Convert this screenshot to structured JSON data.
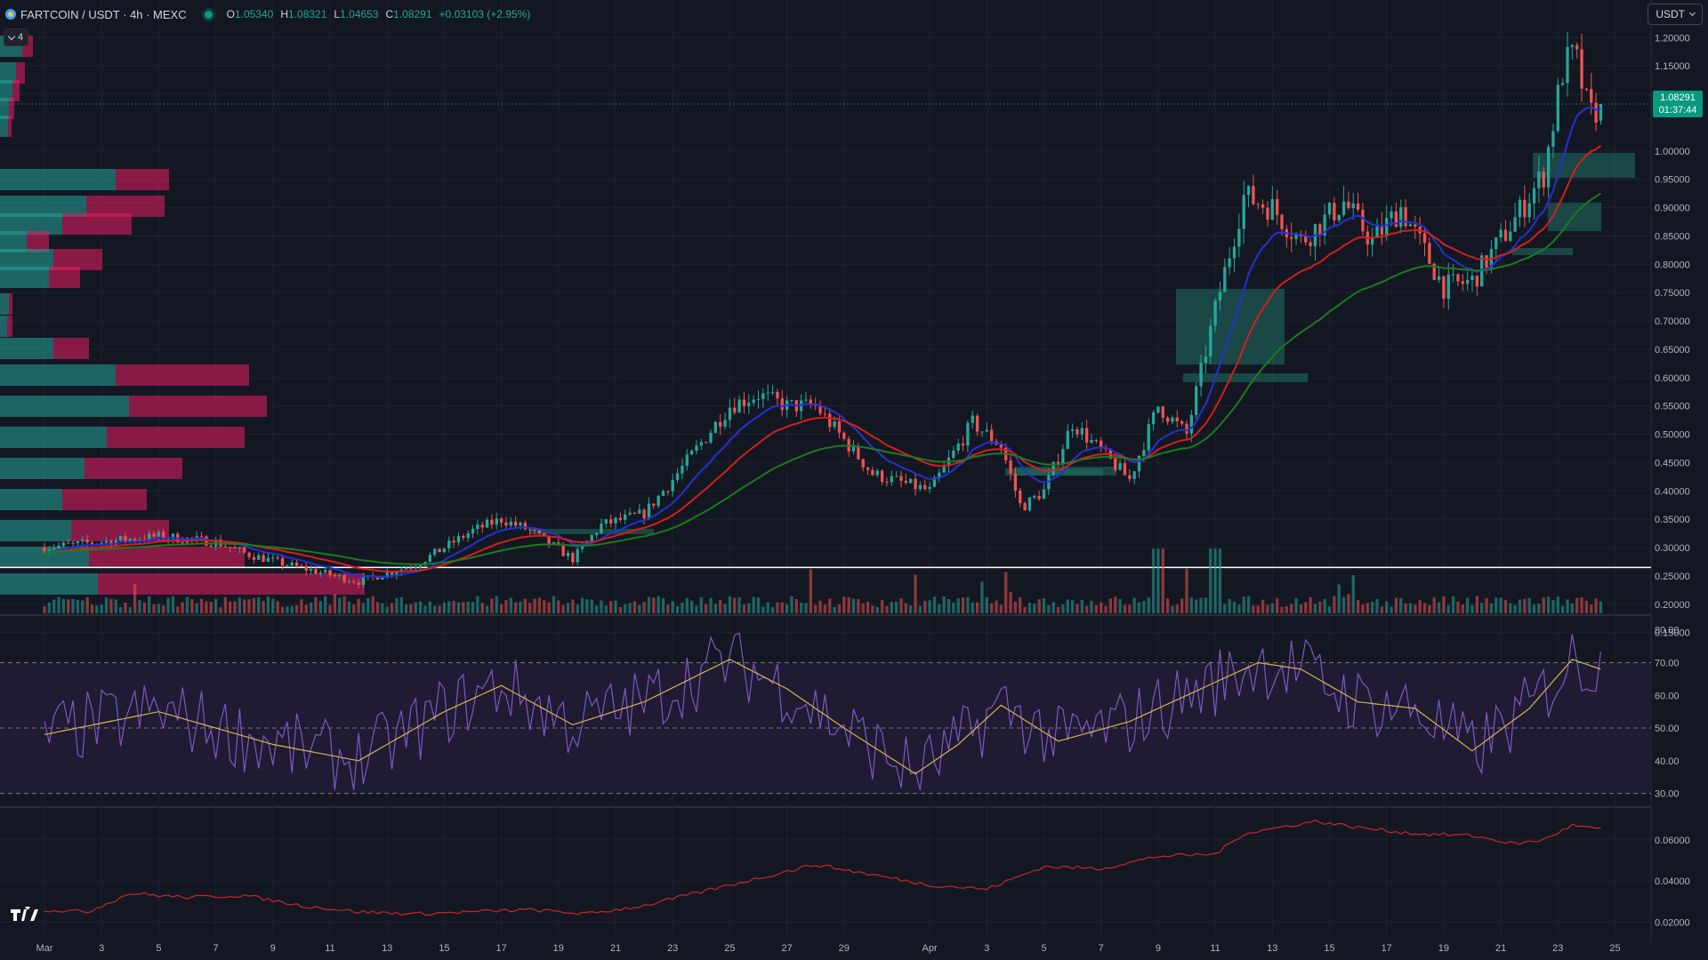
{
  "header": {
    "symbol": "FARTCOIN / USDT · 4h · MEXC",
    "open_label": "O",
    "open": "1.05340",
    "high_label": "H",
    "high": "1.08321",
    "low_label": "L",
    "low": "1.04653",
    "close_label": "C",
    "close": "1.08291",
    "change": "+0.03103 (+2.95%)"
  },
  "layers_toggle": "4",
  "currency_selector": "USDT",
  "current_price": {
    "value": "1.08291",
    "countdown": "01:37:44"
  },
  "colors": {
    "background": "#131722",
    "grid": "#1e222d",
    "up": "#26a69a",
    "down": "#ef5350",
    "ema_fast": "#2232d2",
    "ema_mid": "#d61e1e",
    "ema_slow": "#1e7a1e",
    "rsi_line": "#7e57c2",
    "rsi_ma": "#d4b54a",
    "rsi_band": "#1f1b33",
    "bottom_line": "#c62828"
  },
  "chart_data": [
    {
      "type": "candlestick",
      "name": "",
      "timeframe": "4h",
      "x_tick_labels": [
        "Mar",
        "3",
        "5",
        "7",
        "9",
        "11",
        "13",
        "15",
        "17",
        "19",
        "21",
        "23",
        "25",
        "27",
        "29",
        "Apr",
        "3",
        "5",
        "7",
        "9",
        "11",
        "13",
        "15",
        "17",
        "19",
        "21",
        "23",
        "25"
      ],
      "y_tick_labels": [
        "1.20000",
        "1.15000",
        "1.10000",
        "1.00000",
        "0.95000",
        "0.90000",
        "0.85000",
        "0.80000",
        "0.75000",
        "0.70000",
        "0.65000",
        "0.60000",
        "0.55000",
        "0.50000",
        "0.45000",
        "0.40000",
        "0.35000",
        "0.30000",
        "0.25000",
        "0.20000",
        "0.15000"
      ],
      "ylim": [
        0.14,
        1.21
      ],
      "anchors": [
        {
          "day": 0,
          "price": 0.3
        },
        {
          "day": 4,
          "price": 0.32
        },
        {
          "day": 6,
          "price": 0.31
        },
        {
          "day": 7,
          "price": 0.29
        },
        {
          "day": 8.5,
          "price": 0.27
        },
        {
          "day": 11,
          "price": 0.24
        },
        {
          "day": 13,
          "price": 0.27
        },
        {
          "day": 15,
          "price": 0.33
        },
        {
          "day": 16,
          "price": 0.35
        },
        {
          "day": 17,
          "price": 0.33
        },
        {
          "day": 18.5,
          "price": 0.28
        },
        {
          "day": 19.5,
          "price": 0.34
        },
        {
          "day": 21,
          "price": 0.36
        },
        {
          "day": 22,
          "price": 0.42
        },
        {
          "day": 24,
          "price": 0.55
        },
        {
          "day": 25,
          "price": 0.57
        },
        {
          "day": 26,
          "price": 0.55
        },
        {
          "day": 27,
          "price": 0.55
        },
        {
          "day": 29,
          "price": 0.43
        },
        {
          "day": 31,
          "price": 0.4
        },
        {
          "day": 32.5,
          "price": 0.52
        },
        {
          "day": 33.5,
          "price": 0.48
        },
        {
          "day": 34.2,
          "price": 0.37
        },
        {
          "day": 35,
          "price": 0.4
        },
        {
          "day": 36,
          "price": 0.52
        },
        {
          "day": 37,
          "price": 0.47
        },
        {
          "day": 38,
          "price": 0.42
        },
        {
          "day": 39,
          "price": 0.55
        },
        {
          "day": 40,
          "price": 0.5
        },
        {
          "day": 41,
          "price": 0.72
        },
        {
          "day": 42,
          "price": 0.92
        },
        {
          "day": 43,
          "price": 0.9
        },
        {
          "day": 44,
          "price": 0.84
        },
        {
          "day": 45.5,
          "price": 0.91
        },
        {
          "day": 46.5,
          "price": 0.84
        },
        {
          "day": 47.5,
          "price": 0.9
        },
        {
          "day": 49,
          "price": 0.76
        },
        {
          "day": 50,
          "price": 0.77
        },
        {
          "day": 51.5,
          "price": 0.88
        },
        {
          "day": 52.5,
          "price": 0.96
        },
        {
          "day": 53.2,
          "price": 1.15
        },
        {
          "day": 53.6,
          "price": 1.17
        },
        {
          "day": 54.1,
          "price": 1.06
        },
        {
          "day": 54.5,
          "price": 1.083
        }
      ],
      "ema_periods": [
        12,
        26,
        55
      ],
      "volume_range": [
        0,
        1
      ],
      "rsi": {
        "y_tick_labels": [
          "80.00",
          "70.00",
          "60.00",
          "50.00",
          "40.00",
          "30.00"
        ],
        "ylim": [
          28,
          81
        ],
        "upper": 70,
        "middle": 50,
        "lower": 30,
        "anchors": [
          {
            "day": 0,
            "value": 48
          },
          {
            "day": 4,
            "value": 55
          },
          {
            "day": 8,
            "value": 45
          },
          {
            "day": 11,
            "value": 40
          },
          {
            "day": 14,
            "value": 55
          },
          {
            "day": 16,
            "value": 63
          },
          {
            "day": 18.5,
            "value": 51
          },
          {
            "day": 21,
            "value": 58
          },
          {
            "day": 24,
            "value": 71
          },
          {
            "day": 26,
            "value": 62
          },
          {
            "day": 28,
            "value": 50
          },
          {
            "day": 30.5,
            "value": 36
          },
          {
            "day": 32,
            "value": 45
          },
          {
            "day": 33.5,
            "value": 57
          },
          {
            "day": 35.5,
            "value": 46
          },
          {
            "day": 38,
            "value": 52
          },
          {
            "day": 40,
            "value": 60
          },
          {
            "day": 42.5,
            "value": 70
          },
          {
            "day": 44,
            "value": 68
          },
          {
            "day": 46,
            "value": 58
          },
          {
            "day": 48,
            "value": 56
          },
          {
            "day": 50,
            "value": 43
          },
          {
            "day": 52,
            "value": 56
          },
          {
            "day": 53.5,
            "value": 71
          },
          {
            "day": 54.5,
            "value": 68
          }
        ]
      },
      "bottom_indicator": {
        "y_tick_labels": [
          "0.06000",
          "0.04000",
          "0.02000"
        ],
        "ylim": [
          0.018,
          0.072
        ],
        "anchors": [
          {
            "day": 0,
            "value": 0.026
          },
          {
            "day": 1.5,
            "value": 0.025
          },
          {
            "day": 3,
            "value": 0.034
          },
          {
            "day": 5,
            "value": 0.032
          },
          {
            "day": 7,
            "value": 0.033
          },
          {
            "day": 9,
            "value": 0.028
          },
          {
            "day": 11,
            "value": 0.025
          },
          {
            "day": 13,
            "value": 0.024
          },
          {
            "day": 17,
            "value": 0.026
          },
          {
            "day": 19,
            "value": 0.024
          },
          {
            "day": 21,
            "value": 0.028
          },
          {
            "day": 24,
            "value": 0.038
          },
          {
            "day": 27,
            "value": 0.048
          },
          {
            "day": 29,
            "value": 0.043
          },
          {
            "day": 31,
            "value": 0.038
          },
          {
            "day": 33,
            "value": 0.036
          },
          {
            "day": 35,
            "value": 0.047
          },
          {
            "day": 37,
            "value": 0.046
          },
          {
            "day": 39,
            "value": 0.052
          },
          {
            "day": 41,
            "value": 0.053
          },
          {
            "day": 42,
            "value": 0.063
          },
          {
            "day": 44.5,
            "value": 0.069
          },
          {
            "day": 46,
            "value": 0.066
          },
          {
            "day": 48,
            "value": 0.063
          },
          {
            "day": 50,
            "value": 0.062
          },
          {
            "day": 51.5,
            "value": 0.058
          },
          {
            "day": 52.5,
            "value": 0.06
          },
          {
            "day": 53.5,
            "value": 0.067
          },
          {
            "day": 54.5,
            "value": 0.065
          }
        ]
      }
    }
  ]
}
